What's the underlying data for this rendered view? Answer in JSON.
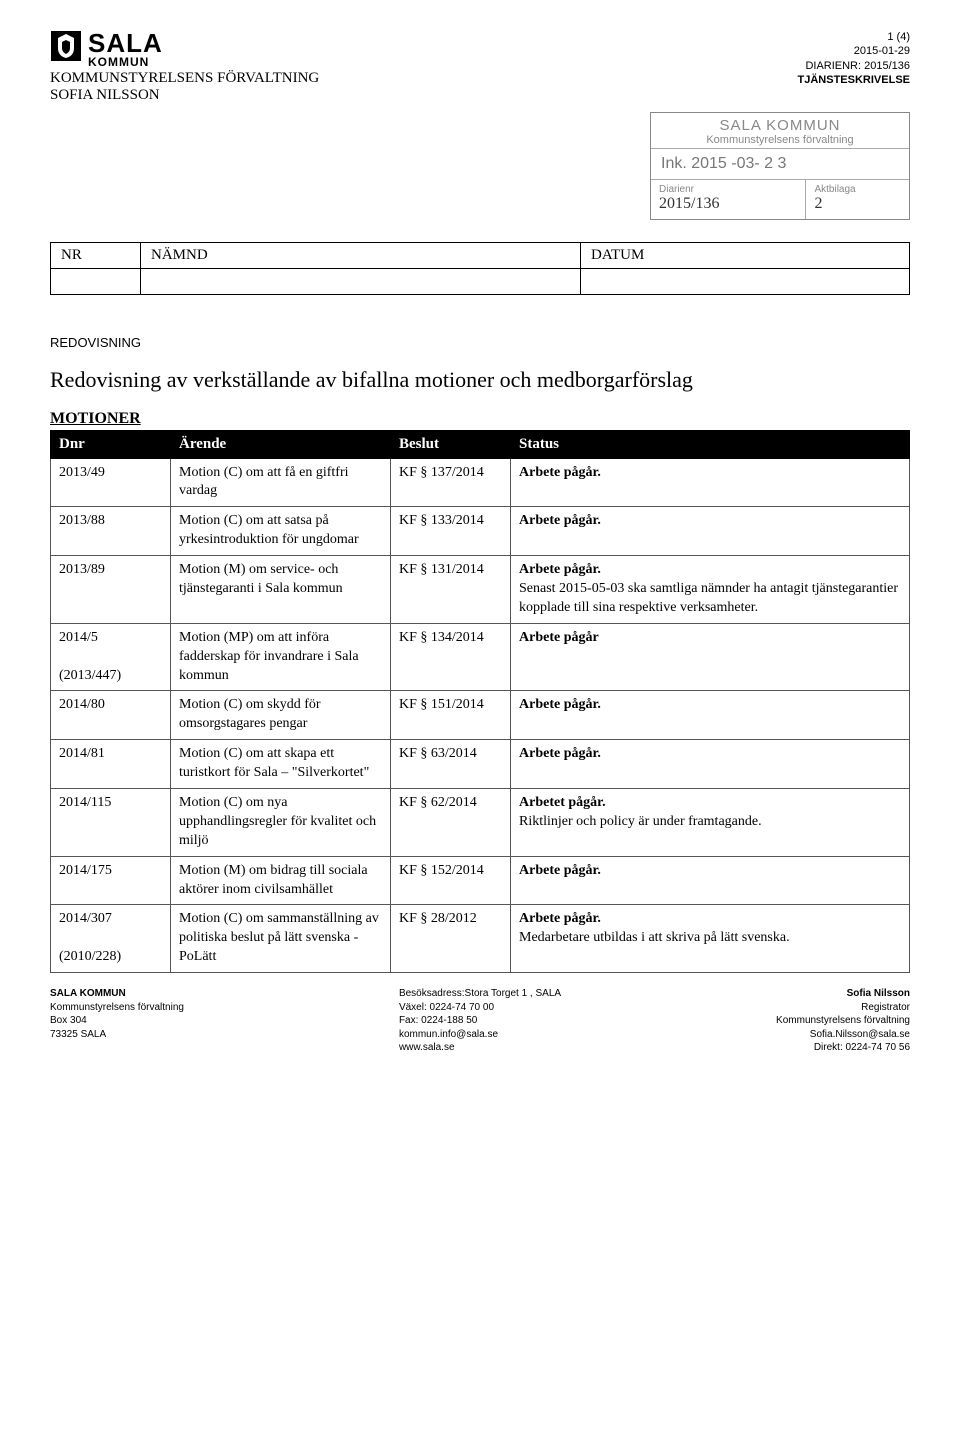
{
  "header": {
    "logo_sala": "SALA",
    "logo_kommun": "KOMMUN",
    "page_num": "1 (4)",
    "date": "2015-01-29",
    "diarienr": "DIARIENR: 2015/136",
    "tj": "TJÄNSTESKRIVELSE",
    "dept": "KOMMUNSTYRELSENS FÖRVALTNING",
    "author": "SOFIA NILSSON"
  },
  "stamp": {
    "title": "SALA KOMMUN",
    "sub": "Kommunstyrelsens förvaltning",
    "ink": "Ink. 2015 -03- 2 3",
    "diar_label": "Diarienr",
    "diar_hand": "2015/136",
    "akt_label": "Aktbilaga",
    "akt_hand": "2"
  },
  "nr_table": {
    "nr": "NR",
    "namnd": "NÄMND",
    "datum": "DATUM"
  },
  "labels": {
    "redov": "REDOVISNING",
    "title": "Redovisning av verkställande av bifallna motioner och medborgarförslag",
    "motioner": "MOTIONER"
  },
  "columns": {
    "dnr": "Dnr",
    "arende": "Ärende",
    "beslut": "Beslut",
    "status": "Status"
  },
  "rows": [
    {
      "dnr": "2013/49",
      "arende": "Motion (C) om att få en giftfri vardag",
      "beslut": "KF § 137/2014",
      "status": "<b>Arbete pågår.</b>"
    },
    {
      "dnr": "2013/88",
      "arende": "Motion (C) om att satsa på yrkesintroduktion för ungdomar",
      "beslut": "KF § 133/2014",
      "status": "<b>Arbete pågår.</b>"
    },
    {
      "dnr": "2013/89",
      "arende": "Motion (M) om service- och tjänstegaranti i Sala kommun",
      "beslut": "KF § 131/2014",
      "status": "<b>Arbete pågår.</b><br>Senast 2015-05-03 ska samtliga nämnder ha antagit tjänstegarantier kopplade till sina respektive verksamheter."
    },
    {
      "dnr": "2014/5<br><br>(2013/447)",
      "arende": "Motion (MP) om att införa fadderskap för invandrare i Sala kommun",
      "beslut": "KF § 134/2014",
      "status": "<b>Arbete pågår</b>"
    },
    {
      "dnr": "2014/80",
      "arende": "Motion (C) om skydd för omsorgstagares pengar",
      "beslut": "KF § 151/2014",
      "status": "<b>Arbete pågår.</b>"
    },
    {
      "dnr": "2014/81",
      "arende": "Motion (C) om att skapa ett turistkort för Sala – \"Silverkortet\"",
      "beslut": "KF § 63/2014",
      "status": "<b>Arbete pågår.</b>"
    },
    {
      "dnr": "2014/115",
      "arende": "Motion (C) om nya upphandlingsregler för kvalitet och miljö",
      "beslut": "KF § 62/2014",
      "status": "<b>Arbetet pågår.</b><br>Riktlinjer och policy är under framtagande."
    },
    {
      "dnr": "2014/175",
      "arende": "Motion (M) om bidrag till sociala aktörer inom civilsamhället",
      "beslut": "KF § 152/2014",
      "status": "<b>Arbete pågår.</b>"
    },
    {
      "dnr": "2014/307<br><br>(2010/228)",
      "arende": "Motion (C) om sammanställning av politiska beslut på lätt svenska - PoLätt",
      "beslut": "KF § 28/2012",
      "status": "<b>Arbete pågår.</b><br>Medarbetare utbildas i att skriva på lätt svenska."
    }
  ],
  "footer": {
    "left": {
      "l1": "SALA KOMMUN",
      "l2": "Kommunstyrelsens förvaltning",
      "l3": "Box 304",
      "l4": "73325 SALA"
    },
    "mid": {
      "l1": "Besöksadress:Stora Torget 1 , SALA",
      "l2": "Växel: 0224-74 70 00",
      "l3": "Fax: 0224-188 50",
      "l4": "kommun.info@sala.se",
      "l5": "www.sala.se"
    },
    "right": {
      "l1": "Sofia Nilsson",
      "l2": "Registrator",
      "l3": "Kommunstyrelsens förvaltning",
      "l4": "Sofia.Nilsson@sala.se",
      "l5": "Direkt: 0224-74 70 56"
    }
  }
}
